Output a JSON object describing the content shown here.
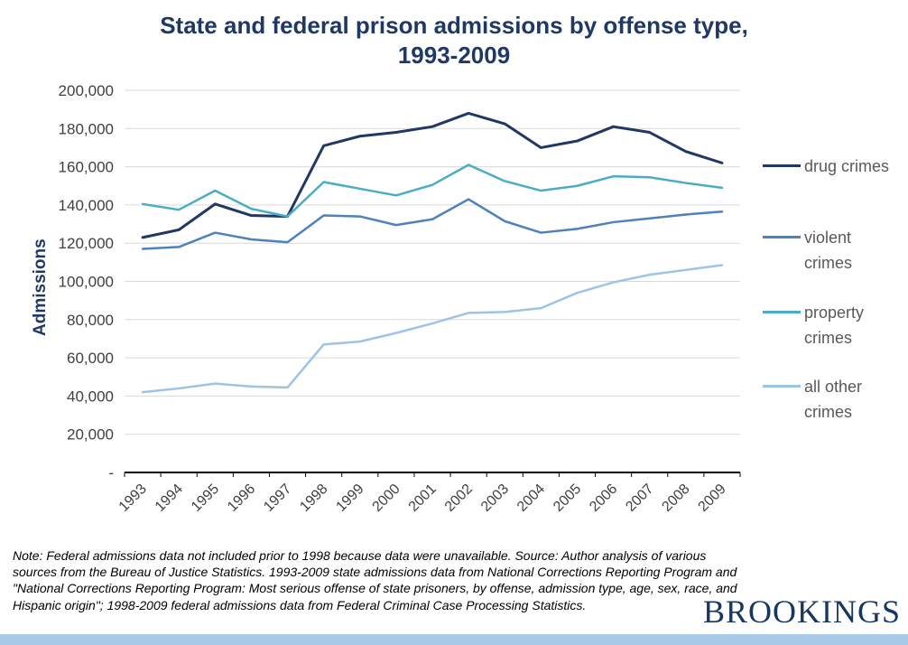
{
  "title": {
    "line1": "State and federal prison admissions by offense type,",
    "line2": "1993-2009"
  },
  "y_axis_label": "Admissions",
  "chart_data": {
    "type": "line",
    "x": [
      "1993",
      "1994",
      "1995",
      "1996",
      "1997",
      "1998",
      "1999",
      "2000",
      "2001",
      "2002",
      "2003",
      "2004",
      "2005",
      "2006",
      "2007",
      "2008",
      "2009"
    ],
    "series": [
      {
        "name": "drug crimes",
        "color": "#1F3864",
        "width": 3,
        "values": [
          123000,
          127000,
          140500,
          134500,
          134000,
          171000,
          176000,
          178000,
          181000,
          188000,
          182500,
          170000,
          173500,
          181000,
          178000,
          168000,
          162000
        ]
      },
      {
        "name": "violent crimes",
        "color": "#4F81BD",
        "width": 2.5,
        "values": [
          117000,
          118000,
          125500,
          122000,
          120500,
          134500,
          134000,
          129500,
          132500,
          143000,
          131500,
          125500,
          127500,
          131000,
          133000,
          135000,
          136500
        ]
      },
      {
        "name": "property crimes",
        "color": "#4BACC6",
        "width": 2.5,
        "values": [
          140500,
          137500,
          147500,
          138000,
          134000,
          152000,
          148500,
          145000,
          150500,
          161000,
          152500,
          147500,
          150000,
          155000,
          154500,
          151500,
          149000
        ]
      },
      {
        "name": "all other crimes",
        "color": "#9DC3E6",
        "width": 2.5,
        "values": [
          42000,
          44000,
          46500,
          45000,
          44500,
          67000,
          68500,
          73000,
          78000,
          83500,
          84000,
          86000,
          94000,
          99500,
          103500,
          106000,
          108500
        ]
      }
    ],
    "ylim": [
      0,
      200000
    ],
    "ytick_step": 20000,
    "ytick_labels": [
      "-",
      "20,000",
      "40,000",
      "60,000",
      "80,000",
      "100,000",
      "120,000",
      "140,000",
      "160,000",
      "180,000",
      "200,000"
    ],
    "grid": true,
    "legend_position": "right",
    "xlabel": "",
    "ylabel": "Admissions"
  },
  "note": "Note: Federal admissions data not included prior to 1998 because data were unavailable.  Source: Author analysis of various sources from the Bureau of Justice Statistics. 1993-2009 state admissions data from National Corrections Reporting Program and \"National Corrections Reporting Program: Most serious offense of state prisoners, by offense, admission type, age,  sex, race, and Hispanic origin\"; 1998-2009 federal admissions data from Federal Criminal Case Processing Statistics.",
  "logo": "BROOKINGS",
  "colors": {
    "title": "#1F3864",
    "axis_text": "#404040",
    "legend_text": "#595959",
    "grid": "#D9D9D9",
    "axis_line": "#000000",
    "footer_bar": "#A7CBE8",
    "logo": "#17375E"
  }
}
